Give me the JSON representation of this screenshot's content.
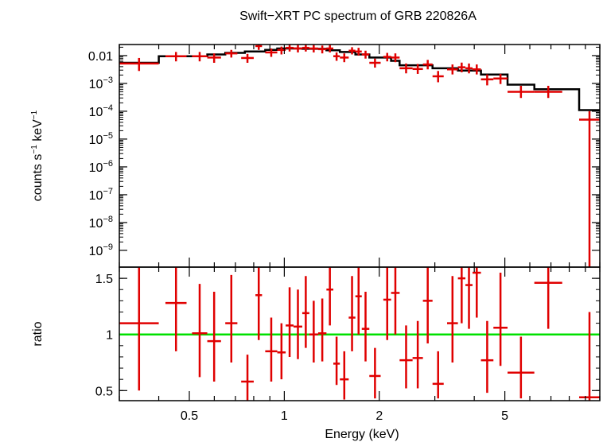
{
  "colors": {
    "data": "#e00000",
    "model": "#000000",
    "unity": "#00e000",
    "frame": "#000000"
  },
  "chart_data": [
    {
      "type": "scatter",
      "title": "Swift−XRT PC spectrum of GRB 220826A",
      "ylabel_parts": {
        "base": "counts s",
        "exp1": "−1",
        "mid": " keV",
        "exp2": "−1"
      },
      "xscale": "log",
      "yscale": "log",
      "xlim": [
        0.3,
        10
      ],
      "ylim": [
        2.5e-10,
        0.025
      ],
      "yticks": [
        {
          "value": 0.01,
          "label": "0.01"
        },
        {
          "value": 0.001,
          "base": "10",
          "exp": "−3"
        },
        {
          "value": 0.0001,
          "base": "10",
          "exp": "−4"
        },
        {
          "value": 1e-05,
          "base": "10",
          "exp": "−5"
        },
        {
          "value": 1e-06,
          "base": "10",
          "exp": "−6"
        },
        {
          "value": 1e-07,
          "base": "10",
          "exp": "−7"
        },
        {
          "value": 1e-08,
          "base": "10",
          "exp": "−8"
        },
        {
          "value": 1e-09,
          "base": "10",
          "exp": "−9"
        }
      ],
      "series": [
        {
          "role": "data",
          "points": [
            {
              "xlo": 0.3,
              "xhi": 0.4,
              "y": 0.0052,
              "ylo": 0.0028,
              "yhi": 0.0082
            },
            {
              "xlo": 0.42,
              "xhi": 0.49,
              "y": 0.0095,
              "ylo": 0.0062,
              "yhi": 0.0135
            },
            {
              "xlo": 0.51,
              "xhi": 0.57,
              "y": 0.0095,
              "ylo": 0.0062,
              "yhi": 0.0135
            },
            {
              "xlo": 0.57,
              "xhi": 0.63,
              "y": 0.0085,
              "ylo": 0.0055,
              "yhi": 0.012
            },
            {
              "xlo": 0.65,
              "xhi": 0.71,
              "y": 0.012,
              "ylo": 0.0085,
              "yhi": 0.016
            },
            {
              "xlo": 0.73,
              "xhi": 0.8,
              "y": 0.0082,
              "ylo": 0.0055,
              "yhi": 0.0115
            },
            {
              "xlo": 0.81,
              "xhi": 0.85,
              "y": 0.022,
              "ylo": 0.016,
              "yhi": 0.028
            },
            {
              "xlo": 0.87,
              "xhi": 0.95,
              "y": 0.013,
              "ylo": 0.009,
              "yhi": 0.018
            },
            {
              "xlo": 0.95,
              "xhi": 1.01,
              "y": 0.016,
              "ylo": 0.011,
              "yhi": 0.021
            },
            {
              "xlo": 1.01,
              "xhi": 1.07,
              "y": 0.019,
              "ylo": 0.014,
              "yhi": 0.025
            },
            {
              "xlo": 1.07,
              "xhi": 1.14,
              "y": 0.018,
              "ylo": 0.013,
              "yhi": 0.024
            },
            {
              "xlo": 1.14,
              "xhi": 1.2,
              "y": 0.019,
              "ylo": 0.014,
              "yhi": 0.025
            },
            {
              "xlo": 1.2,
              "xhi": 1.28,
              "y": 0.018,
              "ylo": 0.013,
              "yhi": 0.024
            },
            {
              "xlo": 1.28,
              "xhi": 1.36,
              "y": 0.017,
              "ylo": 0.012,
              "yhi": 0.023
            },
            {
              "xlo": 1.36,
              "xhi": 1.43,
              "y": 0.018,
              "ylo": 0.013,
              "yhi": 0.024
            },
            {
              "xlo": 1.43,
              "xhi": 1.5,
              "y": 0.0095,
              "ylo": 0.0065,
              "yhi": 0.013
            },
            {
              "xlo": 1.5,
              "xhi": 1.6,
              "y": 0.0085,
              "ylo": 0.0058,
              "yhi": 0.012
            },
            {
              "xlo": 1.6,
              "xhi": 1.68,
              "y": 0.015,
              "ylo": 0.011,
              "yhi": 0.02
            },
            {
              "xlo": 1.68,
              "xhi": 1.76,
              "y": 0.014,
              "ylo": 0.01,
              "yhi": 0.019
            },
            {
              "xlo": 1.76,
              "xhi": 1.86,
              "y": 0.011,
              "ylo": 0.0078,
              "yhi": 0.015
            },
            {
              "xlo": 1.86,
              "xhi": 2.02,
              "y": 0.0055,
              "ylo": 0.0037,
              "yhi": 0.0078
            },
            {
              "xlo": 2.06,
              "xhi": 2.18,
              "y": 0.009,
              "ylo": 0.0062,
              "yhi": 0.0125
            },
            {
              "xlo": 2.18,
              "xhi": 2.32,
              "y": 0.0085,
              "ylo": 0.0058,
              "yhi": 0.012
            },
            {
              "xlo": 2.32,
              "xhi": 2.55,
              "y": 0.0035,
              "ylo": 0.0023,
              "yhi": 0.0052
            },
            {
              "xlo": 2.55,
              "xhi": 2.75,
              "y": 0.0033,
              "ylo": 0.0022,
              "yhi": 0.005
            },
            {
              "xlo": 2.75,
              "xhi": 2.95,
              "y": 0.0048,
              "ylo": 0.0032,
              "yhi": 0.007
            },
            {
              "xlo": 2.95,
              "xhi": 3.2,
              "y": 0.0018,
              "ylo": 0.0011,
              "yhi": 0.0028
            },
            {
              "xlo": 3.28,
              "xhi": 3.55,
              "y": 0.0032,
              "ylo": 0.0021,
              "yhi": 0.0048
            },
            {
              "xlo": 3.55,
              "xhi": 3.75,
              "y": 0.0038,
              "ylo": 0.0025,
              "yhi": 0.0056
            },
            {
              "xlo": 3.75,
              "xhi": 3.95,
              "y": 0.0035,
              "ylo": 0.0023,
              "yhi": 0.0052
            },
            {
              "xlo": 3.95,
              "xhi": 4.2,
              "y": 0.0032,
              "ylo": 0.0021,
              "yhi": 0.0048
            },
            {
              "xlo": 4.2,
              "xhi": 4.6,
              "y": 0.0014,
              "ylo": 0.00085,
              "yhi": 0.0021
            },
            {
              "xlo": 4.6,
              "xhi": 5.1,
              "y": 0.0015,
              "ylo": 0.00095,
              "yhi": 0.0022
            },
            {
              "xlo": 5.1,
              "xhi": 6.2,
              "y": 0.0005,
              "ylo": 0.0003,
              "yhi": 0.00082
            },
            {
              "xlo": 6.2,
              "xhi": 7.6,
              "y": 0.0005,
              "ylo": 0.0003,
              "yhi": 0.00082
            },
            {
              "xlo": 8.6,
              "xhi": 10,
              "y": 5e-05,
              "ylo": 2.5e-10,
              "yhi": 0.0001
            }
          ]
        },
        {
          "role": "model",
          "steps": [
            {
              "xlo": 0.3,
              "xhi": 0.4,
              "y": 0.0055
            },
            {
              "xlo": 0.4,
              "xhi": 0.57,
              "y": 0.0095
            },
            {
              "xlo": 0.57,
              "xhi": 0.65,
              "y": 0.011
            },
            {
              "xlo": 0.65,
              "xhi": 0.75,
              "y": 0.0125
            },
            {
              "xlo": 0.75,
              "xhi": 0.87,
              "y": 0.014
            },
            {
              "xlo": 0.87,
              "xhi": 0.95,
              "y": 0.016
            },
            {
              "xlo": 0.95,
              "xhi": 1.14,
              "y": 0.018
            },
            {
              "xlo": 1.14,
              "xhi": 1.36,
              "y": 0.0175
            },
            {
              "xlo": 1.36,
              "xhi": 1.5,
              "y": 0.0155
            },
            {
              "xlo": 1.5,
              "xhi": 1.68,
              "y": 0.0135
            },
            {
              "xlo": 1.68,
              "xhi": 1.86,
              "y": 0.011
            },
            {
              "xlo": 1.86,
              "xhi": 2.18,
              "y": 0.0085
            },
            {
              "xlo": 2.18,
              "xhi": 2.32,
              "y": 0.0065
            },
            {
              "xlo": 2.32,
              "xhi": 2.95,
              "y": 0.0045
            },
            {
              "xlo": 2.95,
              "xhi": 3.55,
              "y": 0.0035
            },
            {
              "xlo": 3.55,
              "xhi": 4.2,
              "y": 0.0029
            },
            {
              "xlo": 4.2,
              "xhi": 5.1,
              "y": 0.0021
            },
            {
              "xlo": 5.1,
              "xhi": 6.2,
              "y": 0.0009
            },
            {
              "xlo": 6.2,
              "xhi": 8.6,
              "y": 0.00062
            },
            {
              "xlo": 8.6,
              "xhi": 10,
              "y": 0.00011
            }
          ]
        }
      ]
    },
    {
      "type": "scatter",
      "xlabel": "Energy (keV)",
      "ylabel": "ratio",
      "xscale": "log",
      "xlim": [
        0.3,
        10
      ],
      "ylim": [
        0.41,
        1.6
      ],
      "reference_line": 1,
      "xticks": [
        {
          "value": 0.5,
          "label": "0.5"
        },
        {
          "value": 1,
          "label": "1"
        },
        {
          "value": 2,
          "label": "2"
        },
        {
          "value": 5,
          "label": "5"
        }
      ],
      "yticks": [
        {
          "value": 0.5,
          "label": "0.5"
        },
        {
          "value": 1,
          "label": "1"
        },
        {
          "value": 1.5,
          "label": "1.5"
        }
      ],
      "points": [
        {
          "xlo": 0.3,
          "xhi": 0.4,
          "y": 1.1,
          "ylo": 0.5,
          "yhi": 1.6
        },
        {
          "xlo": 0.42,
          "xhi": 0.49,
          "y": 1.28,
          "ylo": 0.85,
          "yhi": 1.6
        },
        {
          "xlo": 0.51,
          "xhi": 0.57,
          "y": 1.01,
          "ylo": 0.62,
          "yhi": 1.45
        },
        {
          "xlo": 0.57,
          "xhi": 0.63,
          "y": 0.94,
          "ylo": 0.58,
          "yhi": 1.38
        },
        {
          "xlo": 0.65,
          "xhi": 0.71,
          "y": 1.1,
          "ylo": 0.75,
          "yhi": 1.53
        },
        {
          "xlo": 0.73,
          "xhi": 0.8,
          "y": 0.58,
          "ylo": 0.41,
          "yhi": 0.82
        },
        {
          "xlo": 0.81,
          "xhi": 0.85,
          "y": 1.35,
          "ylo": 0.95,
          "yhi": 1.6
        },
        {
          "xlo": 0.87,
          "xhi": 0.95,
          "y": 0.85,
          "ylo": 0.58,
          "yhi": 1.15
        },
        {
          "xlo": 0.95,
          "xhi": 1.01,
          "y": 0.84,
          "ylo": 0.6,
          "yhi": 1.1
        },
        {
          "xlo": 1.01,
          "xhi": 1.07,
          "y": 1.08,
          "ylo": 0.8,
          "yhi": 1.42
        },
        {
          "xlo": 1.07,
          "xhi": 1.14,
          "y": 1.07,
          "ylo": 0.78,
          "yhi": 1.4
        },
        {
          "xlo": 1.14,
          "xhi": 1.2,
          "y": 1.19,
          "ylo": 0.88,
          "yhi": 1.52
        },
        {
          "xlo": 1.2,
          "xhi": 1.28,
          "y": 1.0,
          "ylo": 0.75,
          "yhi": 1.3
        },
        {
          "xlo": 1.28,
          "xhi": 1.36,
          "y": 1.01,
          "ylo": 0.76,
          "yhi": 1.32
        },
        {
          "xlo": 1.36,
          "xhi": 1.43,
          "y": 1.4,
          "ylo": 1.08,
          "yhi": 1.6
        },
        {
          "xlo": 1.43,
          "xhi": 1.5,
          "y": 0.74,
          "ylo": 0.55,
          "yhi": 0.98
        },
        {
          "xlo": 1.5,
          "xhi": 1.6,
          "y": 0.6,
          "ylo": 0.42,
          "yhi": 0.85
        },
        {
          "xlo": 1.6,
          "xhi": 1.68,
          "y": 1.15,
          "ylo": 0.85,
          "yhi": 1.52
        },
        {
          "xlo": 1.68,
          "xhi": 1.76,
          "y": 1.34,
          "ylo": 1.0,
          "yhi": 1.6
        },
        {
          "xlo": 1.76,
          "xhi": 1.86,
          "y": 1.05,
          "ylo": 0.76,
          "yhi": 1.38
        },
        {
          "xlo": 1.86,
          "xhi": 2.02,
          "y": 0.63,
          "ylo": 0.43,
          "yhi": 0.88
        },
        {
          "xlo": 2.06,
          "xhi": 2.18,
          "y": 1.31,
          "ylo": 0.95,
          "yhi": 1.6
        },
        {
          "xlo": 2.18,
          "xhi": 2.32,
          "y": 1.37,
          "ylo": 1.0,
          "yhi": 1.6
        },
        {
          "xlo": 2.32,
          "xhi": 2.55,
          "y": 0.77,
          "ylo": 0.52,
          "yhi": 1.08
        },
        {
          "xlo": 2.55,
          "xhi": 2.75,
          "y": 0.79,
          "ylo": 0.52,
          "yhi": 1.12
        },
        {
          "xlo": 2.75,
          "xhi": 2.95,
          "y": 1.3,
          "ylo": 0.92,
          "yhi": 1.6
        },
        {
          "xlo": 2.95,
          "xhi": 3.2,
          "y": 0.56,
          "ylo": 0.43,
          "yhi": 0.85
        },
        {
          "xlo": 3.28,
          "xhi": 3.55,
          "y": 1.1,
          "ylo": 0.75,
          "yhi": 1.52
        },
        {
          "xlo": 3.55,
          "xhi": 3.75,
          "y": 1.5,
          "ylo": 1.1,
          "yhi": 1.6
        },
        {
          "xlo": 3.75,
          "xhi": 3.95,
          "y": 1.44,
          "ylo": 1.05,
          "yhi": 1.6
        },
        {
          "xlo": 3.95,
          "xhi": 4.2,
          "y": 1.55,
          "ylo": 1.15,
          "yhi": 1.6
        },
        {
          "xlo": 4.2,
          "xhi": 4.6,
          "y": 0.77,
          "ylo": 0.48,
          "yhi": 1.12
        },
        {
          "xlo": 4.6,
          "xhi": 5.1,
          "y": 1.06,
          "ylo": 0.72,
          "yhi": 1.55
        },
        {
          "xlo": 5.1,
          "xhi": 6.2,
          "y": 0.66,
          "ylo": 0.43,
          "yhi": 0.98
        },
        {
          "xlo": 6.2,
          "xhi": 7.6,
          "y": 1.46,
          "ylo": 1.05,
          "yhi": 1.6
        },
        {
          "xlo": 8.6,
          "xhi": 10,
          "y": 0.44,
          "ylo": 0.41,
          "yhi": 1.2
        }
      ]
    }
  ]
}
